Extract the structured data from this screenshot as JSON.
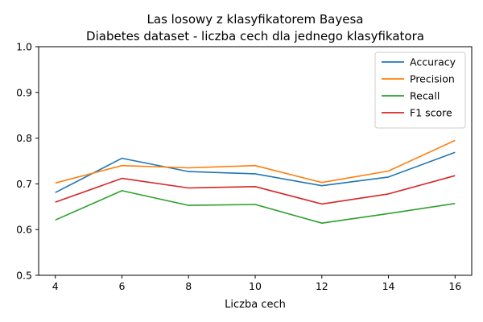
{
  "chart_data": {
    "type": "line",
    "title": "Las losowy z klasyfikatorem Bayesa",
    "subtitle": "Diabetes dataset - liczba cech dla jednego klasyfikatora",
    "xlabel": "Liczba cech",
    "ylabel": "",
    "x": [
      4,
      6,
      8,
      10,
      12,
      14,
      16
    ],
    "xticks": [
      "4",
      "6",
      "8",
      "10",
      "12",
      "14",
      "16"
    ],
    "yticks": [
      "0.5",
      "0.6",
      "0.7",
      "0.8",
      "0.9",
      "1.0"
    ],
    "xlim": [
      3.5,
      16.5
    ],
    "ylim": [
      0.5,
      1.0
    ],
    "grid": false,
    "legend_position": "top-right",
    "series": [
      {
        "name": "Accuracy",
        "color": "#1f77b4",
        "values": [
          0.681,
          0.756,
          0.727,
          0.722,
          0.696,
          0.715,
          0.769
        ]
      },
      {
        "name": "Precision",
        "color": "#ff7f0e",
        "values": [
          0.702,
          0.74,
          0.735,
          0.74,
          0.703,
          0.728,
          0.795
        ]
      },
      {
        "name": "Recall",
        "color": "#2ca02c",
        "values": [
          0.621,
          0.685,
          0.653,
          0.655,
          0.614,
          0.635,
          0.657
        ]
      },
      {
        "name": "F1 score",
        "color": "#d62728",
        "values": [
          0.66,
          0.712,
          0.691,
          0.694,
          0.656,
          0.678,
          0.718
        ]
      }
    ]
  }
}
